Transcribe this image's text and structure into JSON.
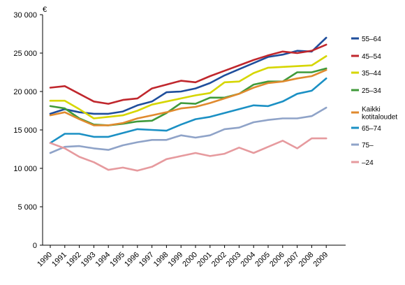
{
  "chart_data": {
    "type": "line",
    "unit_label": "€",
    "x": [
      "1990",
      "1991",
      "1992",
      "1993",
      "1994",
      "1995",
      "1996",
      "1997",
      "1998",
      "1999",
      "2000",
      "2001",
      "2002",
      "2003",
      "2004",
      "2005",
      "2006",
      "2007",
      "2008",
      "2009"
    ],
    "ylim": [
      0,
      30000
    ],
    "yticks": [
      0,
      5000,
      10000,
      15000,
      20000,
      25000,
      30000
    ],
    "ytick_labels": [
      "0",
      "5 000",
      "10 000",
      "15 000",
      "20 000",
      "25 000",
      "30 000"
    ],
    "grid": false,
    "legend_position": "right",
    "series": [
      {
        "name": "55–64",
        "color": "#1f4e9c",
        "values": [
          17100,
          17700,
          17300,
          17100,
          17100,
          17400,
          18200,
          18700,
          19900,
          20000,
          20400,
          21100,
          22100,
          22900,
          23700,
          24500,
          24800,
          25300,
          25200,
          27000
        ]
      },
      {
        "name": "45–54",
        "color": "#c0272d",
        "values": [
          20500,
          20700,
          19700,
          18700,
          18400,
          18900,
          19100,
          20400,
          20900,
          21400,
          21200,
          22000,
          22700,
          23400,
          24100,
          24700,
          25200,
          25000,
          25300,
          26100
        ]
      },
      {
        "name": "35–44",
        "color": "#d6d600",
        "values": [
          18800,
          18800,
          17700,
          16500,
          16700,
          16900,
          17500,
          18300,
          18700,
          19100,
          19500,
          19800,
          21200,
          21300,
          22400,
          23100,
          23200,
          23300,
          23400,
          24600
        ]
      },
      {
        "name": "25–34",
        "color": "#3f9a3a",
        "values": [
          18100,
          17800,
          16500,
          15700,
          15600,
          15800,
          16100,
          16200,
          17200,
          18500,
          18400,
          19200,
          19200,
          19700,
          20900,
          21300,
          21300,
          22500,
          22500,
          23000
        ]
      },
      {
        "name": "Kaikki kotitaloudet",
        "label_lines": [
          "Kaikki",
          "kotitaloudet"
        ],
        "color": "#e08a2e",
        "values": [
          16900,
          17300,
          16400,
          15600,
          15600,
          15900,
          16500,
          16900,
          17300,
          17800,
          18000,
          18500,
          19100,
          19700,
          20500,
          21100,
          21300,
          21700,
          22000,
          22800
        ]
      },
      {
        "name": "65–74",
        "color": "#1b90c4",
        "values": [
          13300,
          14500,
          14500,
          14100,
          14100,
          14600,
          15100,
          15000,
          14900,
          15700,
          16400,
          16700,
          17200,
          17700,
          18200,
          18100,
          18700,
          19700,
          20100,
          21700
        ]
      },
      {
        "name": "75–",
        "color": "#8fa3c8",
        "values": [
          12000,
          12800,
          12900,
          12600,
          12400,
          13000,
          13400,
          13700,
          13700,
          14300,
          14000,
          14300,
          15100,
          15300,
          16000,
          16300,
          16500,
          16500,
          16800,
          17900
        ]
      },
      {
        "name": "–24",
        "color": "#e69a9e",
        "values": [
          13300,
          12600,
          11500,
          10800,
          9800,
          10100,
          9700,
          10200,
          11200,
          11600,
          12000,
          11600,
          11900,
          12700,
          12000,
          12800,
          13600,
          12600,
          13900,
          13900
        ]
      }
    ]
  }
}
